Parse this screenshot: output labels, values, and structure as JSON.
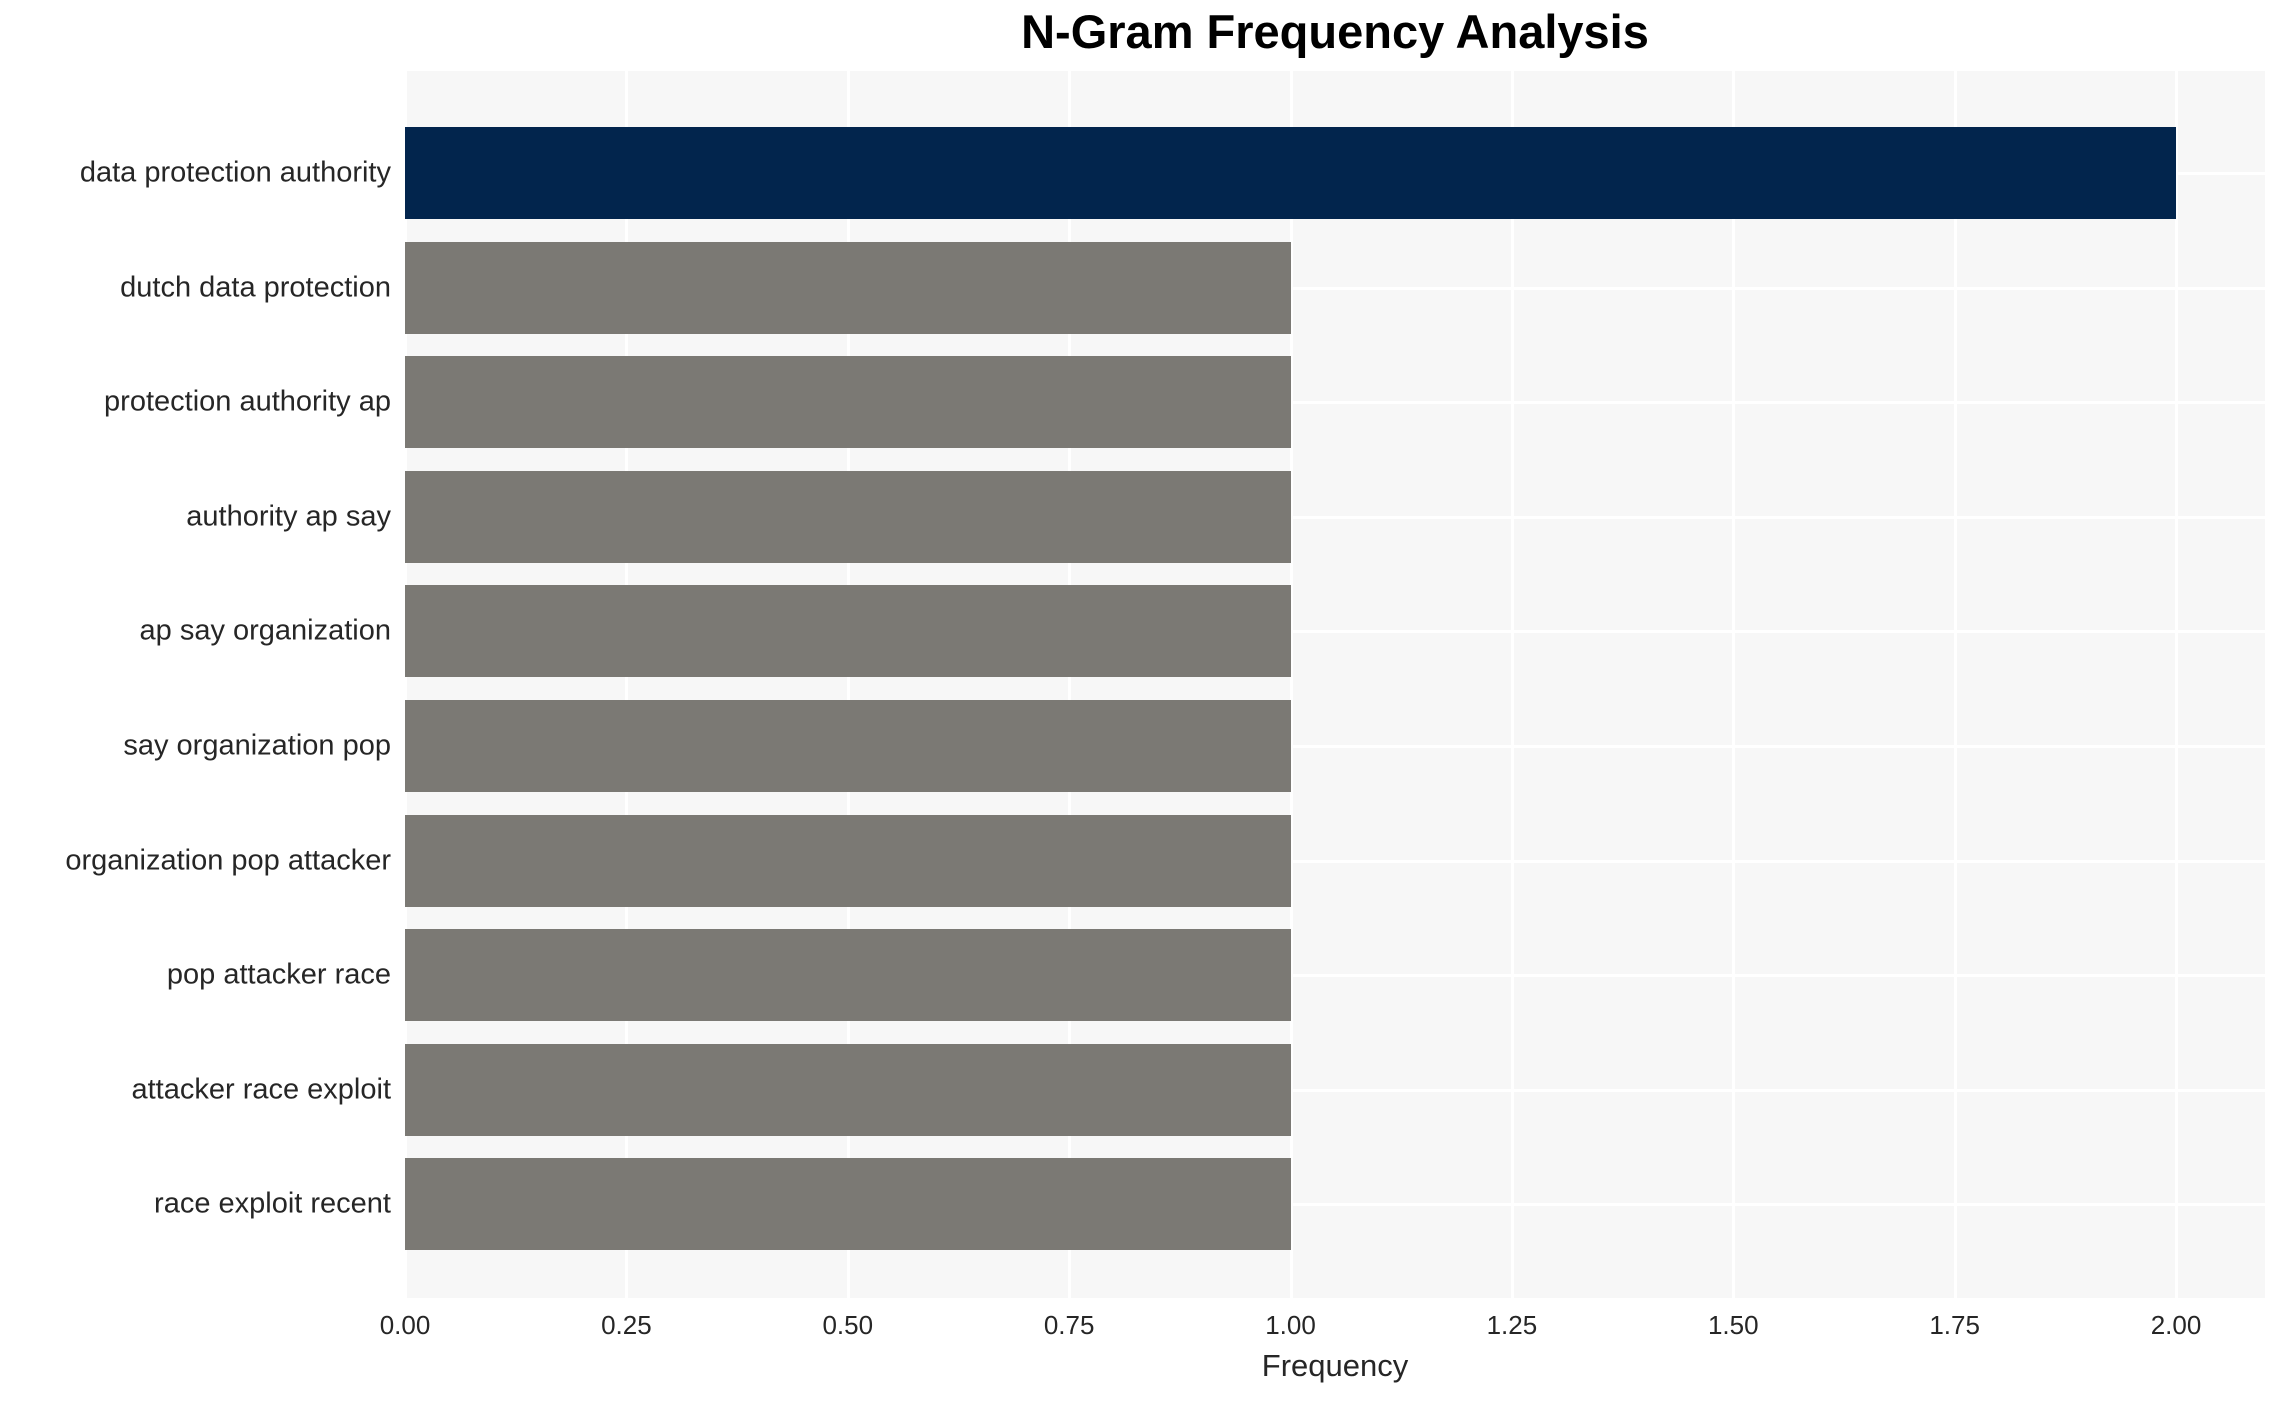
{
  "chart_data": {
    "type": "bar",
    "orientation": "horizontal",
    "title": "N-Gram Frequency Analysis",
    "xlabel": "Frequency",
    "ylabel": "",
    "categories": [
      "data protection authority",
      "dutch data protection",
      "protection authority ap",
      "authority ap say",
      "ap say organization",
      "say organization pop",
      "organization pop attacker",
      "pop attacker race",
      "attacker race exploit",
      "race exploit recent"
    ],
    "values": [
      2,
      1,
      1,
      1,
      1,
      1,
      1,
      1,
      1,
      1
    ],
    "bar_colors": [
      "#02254d",
      "#7b7974",
      "#7b7974",
      "#7b7974",
      "#7b7974",
      "#7b7974",
      "#7b7974",
      "#7b7974",
      "#7b7974",
      "#7b7974"
    ],
    "xlim": [
      0,
      2.1
    ],
    "xticks": [
      0,
      0.25,
      0.5,
      0.75,
      1,
      1.25,
      1.5,
      1.75,
      2
    ],
    "xtick_labels": [
      "0.00",
      "0.25",
      "0.50",
      "0.75",
      "1.00",
      "1.25",
      "1.50",
      "1.75",
      "2.00"
    ],
    "grid": true,
    "legend": null,
    "colors": {
      "highlight_bar": "#02254d",
      "default_bar": "#7b7974",
      "plot_background": "#f7f7f7",
      "gridline": "#ffffff",
      "tick_text": "#262626",
      "title_text": "#000000"
    }
  }
}
